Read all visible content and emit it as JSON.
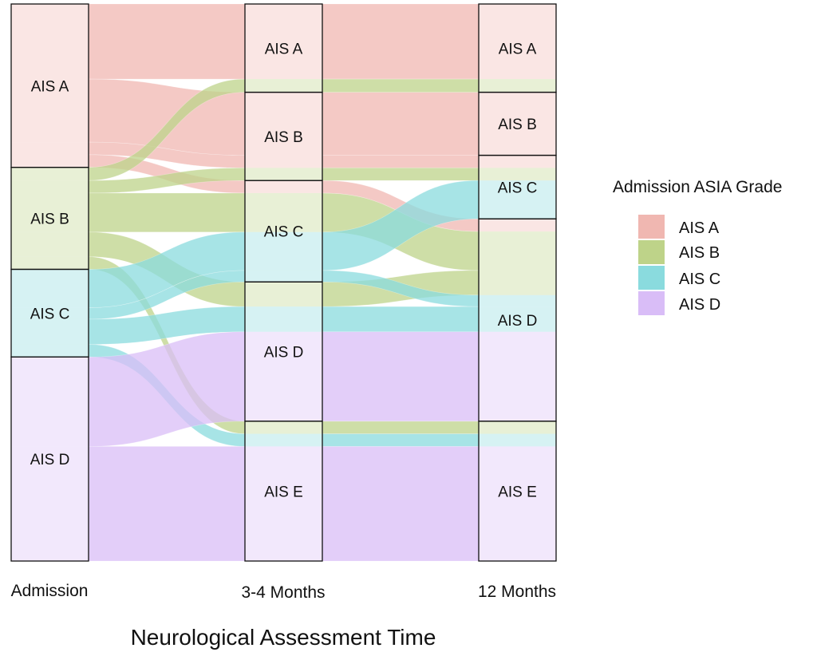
{
  "chart_data": {
    "type": "alluvial",
    "xlabel": "Neurological Assessment Time",
    "axes": [
      "Admission",
      "3-4 Months",
      "12 Months"
    ],
    "colors": {
      "AIS A": "#f0b7b1",
      "AIS B": "#bed389",
      "AIS C": "#8adbde",
      "AIS D": "#d9bdf7"
    },
    "legend": {
      "title": "Admission ASIA Grade",
      "position": "right",
      "entries": [
        "AIS A",
        "AIS B",
        "AIS C",
        "AIS D"
      ]
    },
    "strata": [
      [
        "AIS A",
        "AIS B",
        "AIS C",
        "AIS D"
      ],
      [
        "AIS A",
        "AIS B",
        "AIS C",
        "AIS D",
        "AIS E"
      ],
      [
        "AIS A",
        "AIS B",
        "AIS C",
        "AIS D",
        "AIS E"
      ]
    ],
    "flows": [
      {
        "group": "AIS A",
        "values": [
          "AIS A",
          "AIS A",
          "AIS A"
        ],
        "n": 13.1
      },
      {
        "group": "AIS A",
        "values": [
          "AIS A",
          "AIS B",
          "AIS B"
        ],
        "n": 11.0
      },
      {
        "group": "AIS A",
        "values": [
          "AIS A",
          "AIS B",
          "AIS C"
        ],
        "n": 2.2
      },
      {
        "group": "AIS A",
        "values": [
          "AIS A",
          "AIS C",
          "AIS D"
        ],
        "n": 2.2
      },
      {
        "group": "AIS B",
        "values": [
          "AIS B",
          "AIS A",
          "AIS A"
        ],
        "n": 2.3
      },
      {
        "group": "AIS B",
        "values": [
          "AIS B",
          "AIS B",
          "AIS C"
        ],
        "n": 2.2
      },
      {
        "group": "AIS B",
        "values": [
          "AIS B",
          "AIS C",
          "AIS D"
        ],
        "n": 6.8
      },
      {
        "group": "AIS B",
        "values": [
          "AIS B",
          "AIS D",
          "AIS D"
        ],
        "n": 4.3
      },
      {
        "group": "AIS B",
        "values": [
          "AIS B",
          "AIS E",
          "AIS E"
        ],
        "n": 2.2
      },
      {
        "group": "AIS C",
        "values": [
          "AIS C",
          "AIS C",
          "AIS C"
        ],
        "n": 6.7
      },
      {
        "group": "AIS C",
        "values": [
          "AIS C",
          "AIS C",
          "AIS D"
        ],
        "n": 2.0
      },
      {
        "group": "AIS C",
        "values": [
          "AIS C",
          "AIS D",
          "AIS D"
        ],
        "n": 4.4
      },
      {
        "group": "AIS C",
        "values": [
          "AIS C",
          "AIS E",
          "AIS E"
        ],
        "n": 2.2
      },
      {
        "group": "AIS D",
        "values": [
          "AIS D",
          "AIS D",
          "AIS D"
        ],
        "n": 15.6
      },
      {
        "group": "AIS D",
        "values": [
          "AIS D",
          "AIS E",
          "AIS E"
        ],
        "n": 20.0
      }
    ]
  }
}
